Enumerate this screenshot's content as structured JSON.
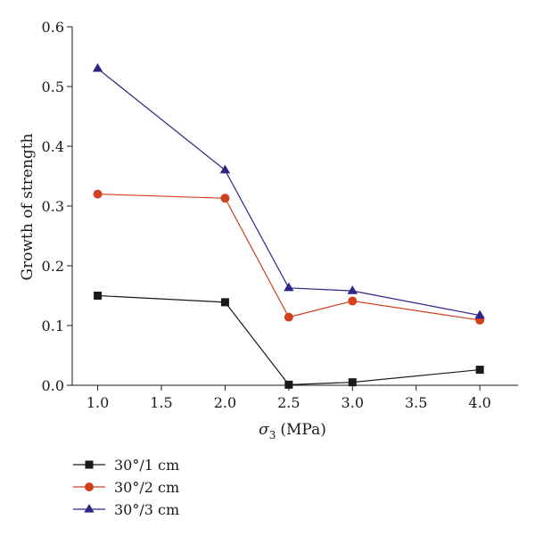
{
  "chart_data": {
    "type": "line",
    "xlabel_symbol": "σ",
    "xlabel_subscript": "3",
    "xlabel_unit": "(MPa)",
    "ylabel": "Growth of strength",
    "xlim": [
      0.8,
      4.3
    ],
    "ylim": [
      0.0,
      0.6
    ],
    "x_ticks": [
      1.0,
      1.5,
      2.0,
      2.5,
      3.0,
      3.5,
      4.0
    ],
    "x_tick_labels": [
      "1.0",
      "1.5",
      "2.0",
      "2.5",
      "3.0",
      "3.5",
      "4.0"
    ],
    "y_ticks": [
      0.0,
      0.1,
      0.2,
      0.3,
      0.4,
      0.5,
      0.6
    ],
    "y_tick_labels": [
      "0.0",
      "0.1",
      "0.2",
      "0.3",
      "0.4",
      "0.5",
      "0.6"
    ],
    "grid": false,
    "legend_position": "bottom-left below plot",
    "series": [
      {
        "name": "30°/1 cm",
        "marker": "square",
        "color": "#1a1a1a",
        "x": [
          1.0,
          2.0,
          2.5,
          3.0,
          4.0
        ],
        "y": [
          0.15,
          0.139,
          0.001,
          0.005,
          0.026
        ]
      },
      {
        "name": "30°/2 cm",
        "marker": "circle",
        "color": "#d2401e",
        "x": [
          1.0,
          2.0,
          2.5,
          3.0,
          4.0
        ],
        "y": [
          0.32,
          0.313,
          0.114,
          0.141,
          0.109
        ]
      },
      {
        "name": "30°/3 cm",
        "marker": "triangle",
        "color": "#2c2486",
        "x": [
          1.0,
          2.0,
          2.5,
          3.0,
          4.0
        ],
        "y": [
          0.53,
          0.36,
          0.163,
          0.158,
          0.117
        ]
      }
    ]
  }
}
